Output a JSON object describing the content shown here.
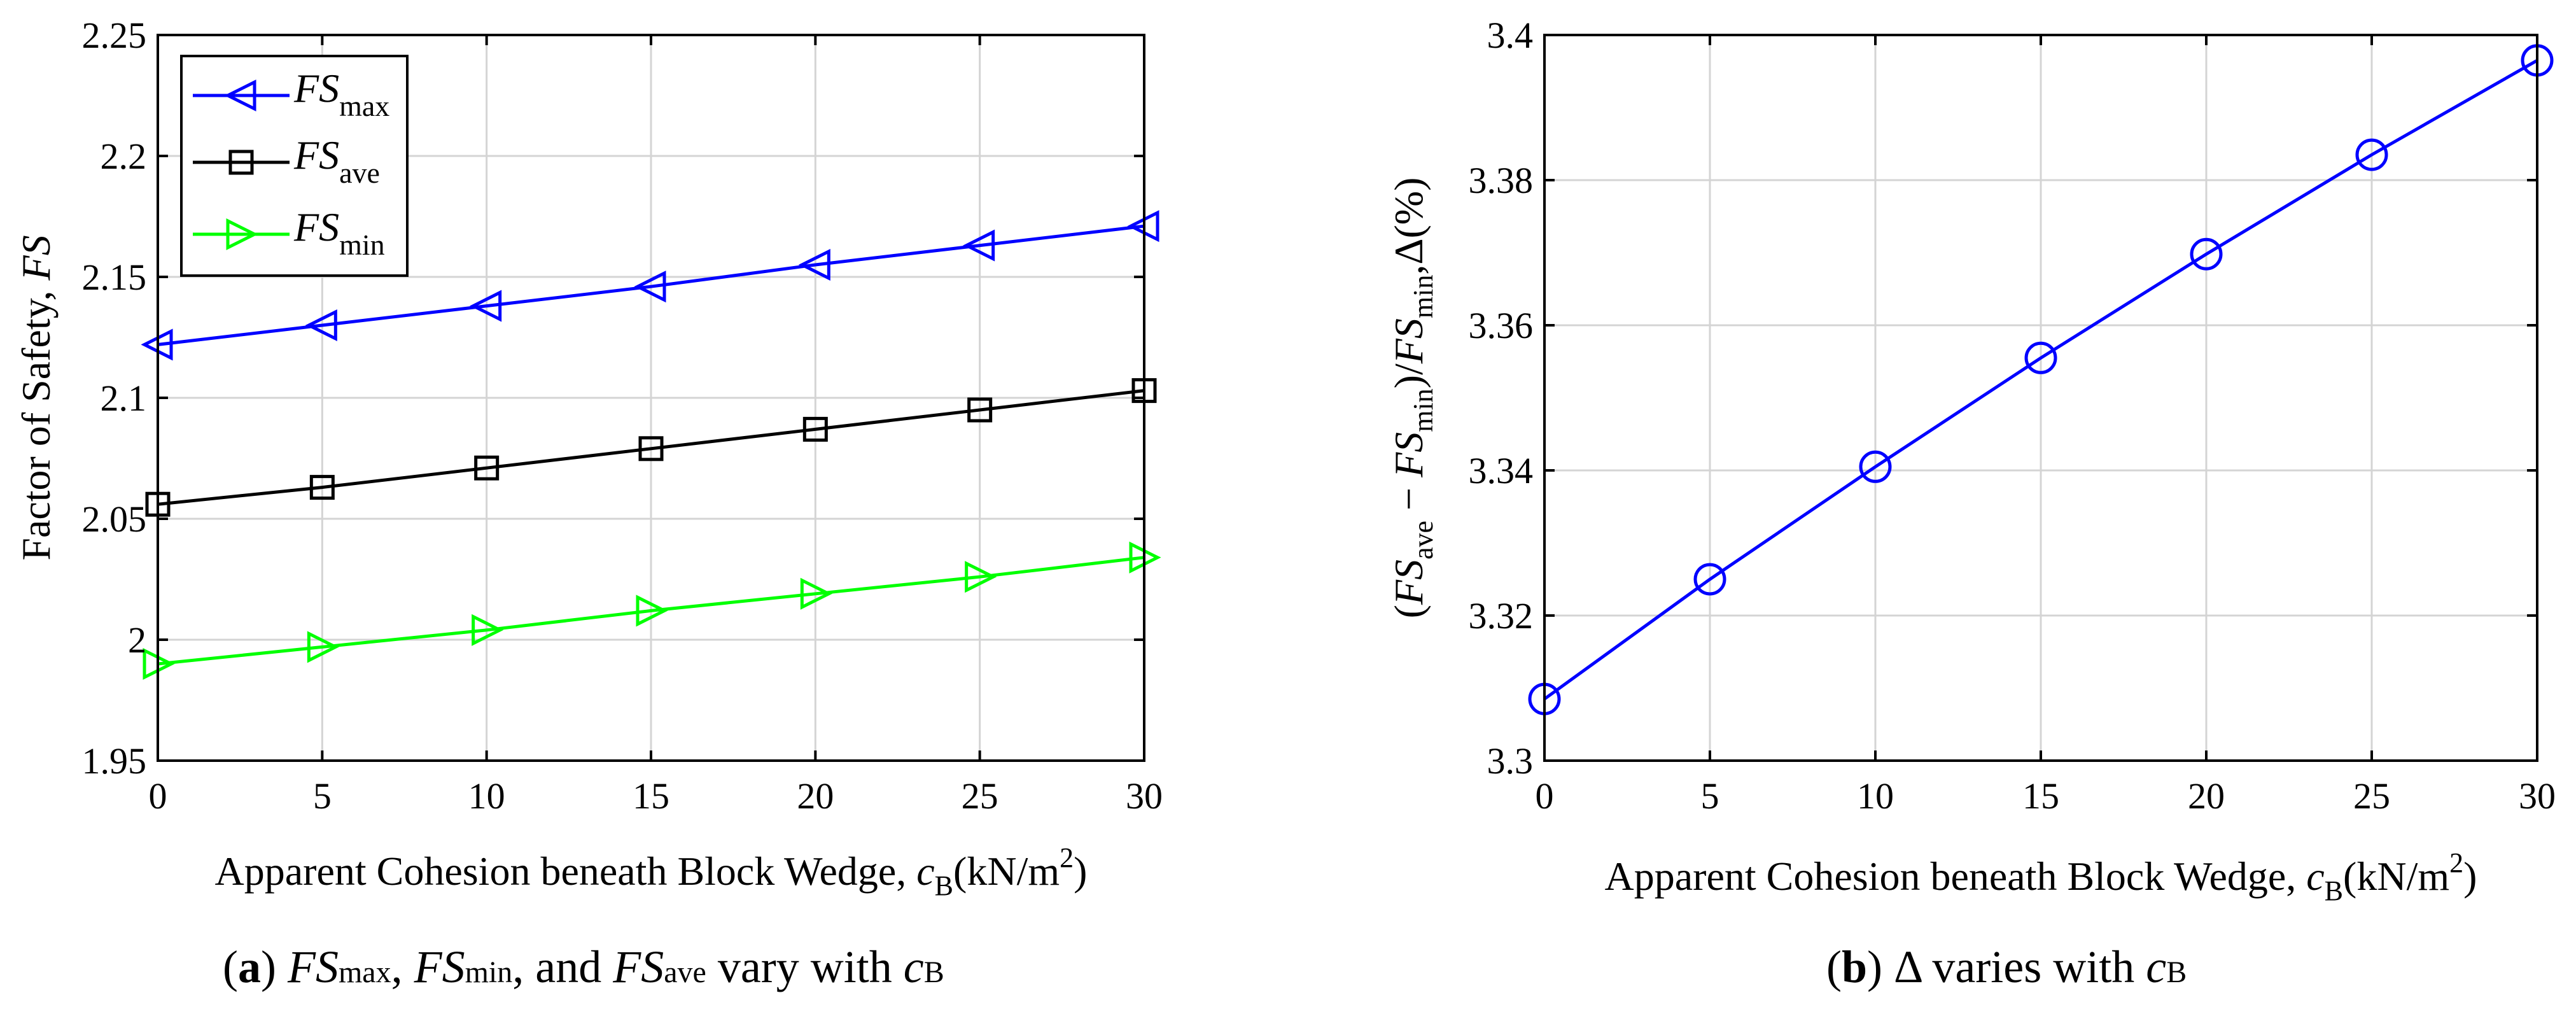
{
  "chart_data": [
    {
      "type": "line",
      "xlabel": "Apparent Cohesion beneath Block Wedge, ",
      "xlabel_var": "c",
      "xlabel_var_sub": "B",
      "xlabel_unit": "(kN/m",
      "xlabel_unit_sup": "2",
      "xlabel_unit_close": ")",
      "ylabel": "Factor of Safety, ",
      "ylabel_var": "FS",
      "xlim": [
        0,
        30
      ],
      "ylim": [
        1.95,
        2.25
      ],
      "x": [
        0,
        5,
        10,
        15,
        20,
        25,
        30
      ],
      "xticks": [
        "0",
        "5",
        "10",
        "15",
        "20",
        "25",
        "30"
      ],
      "yticks": [
        "1.95",
        "2",
        "2.05",
        "2.1",
        "2.15",
        "2.2",
        "2.25"
      ],
      "grid": true,
      "legend_position": "top-left",
      "series": [
        {
          "name": "FS",
          "sub": "max",
          "marker": "triangle-left",
          "color": "#0000ff",
          "values": [
            2.122,
            2.13,
            2.138,
            2.146,
            2.155,
            2.163,
            2.171
          ]
        },
        {
          "name": "FS",
          "sub": "ave",
          "marker": "square",
          "color": "#000000",
          "values": [
            2.056,
            2.063,
            2.071,
            2.079,
            2.087,
            2.095,
            2.103
          ]
        },
        {
          "name": "FS",
          "sub": "min",
          "marker": "triangle-right",
          "color": "#00ff00",
          "values": [
            1.99,
            1.997,
            2.004,
            2.012,
            2.019,
            2.026,
            2.034
          ]
        }
      ]
    },
    {
      "type": "line",
      "xlabel": "Apparent Cohesion beneath Block Wedge, ",
      "xlabel_var": "c",
      "xlabel_var_sub": "B",
      "xlabel_unit": "(kN/m",
      "xlabel_unit_sup": "2",
      "xlabel_unit_close": ")",
      "ylabel_p1": "(",
      "ylabel_fs1": "FS",
      "ylabel_sub1": "ave",
      "ylabel_p2": " − ",
      "ylabel_fs2": "FS",
      "ylabel_sub2": "min",
      "ylabel_p3": ")/",
      "ylabel_fs3": "FS",
      "ylabel_sub3": "min",
      "ylabel_p4": ",Δ(%)",
      "xlim": [
        0,
        30
      ],
      "ylim": [
        3.3,
        3.4
      ],
      "x": [
        0,
        5,
        10,
        15,
        20,
        25,
        30
      ],
      "xticks": [
        "0",
        "5",
        "10",
        "15",
        "20",
        "25",
        "30"
      ],
      "yticks": [
        "3.3",
        "3.32",
        "3.34",
        "3.36",
        "3.38",
        "3.4"
      ],
      "grid": true,
      "series": [
        {
          "name": "Δ",
          "marker": "circle",
          "color": "#0000ff",
          "values": [
            3.3085,
            3.325,
            3.3405,
            3.3555,
            3.3698,
            3.3835,
            3.3965
          ]
        }
      ]
    }
  ],
  "captions": {
    "a": {
      "open": "(",
      "letter": "a",
      "close": ") ",
      "fs1": "FS",
      "sub1": "max",
      "sep1": ", ",
      "fs2": "FS",
      "sub2": "min",
      "sep2": ", and ",
      "fs3": "FS",
      "sub3": "ave",
      "rest": " vary with ",
      "var": "c",
      "var_sub": "B"
    },
    "b": {
      "open": "(",
      "letter": "b",
      "close": ") ",
      "rest": "Δ varies with ",
      "var": "c",
      "var_sub": "B"
    }
  }
}
